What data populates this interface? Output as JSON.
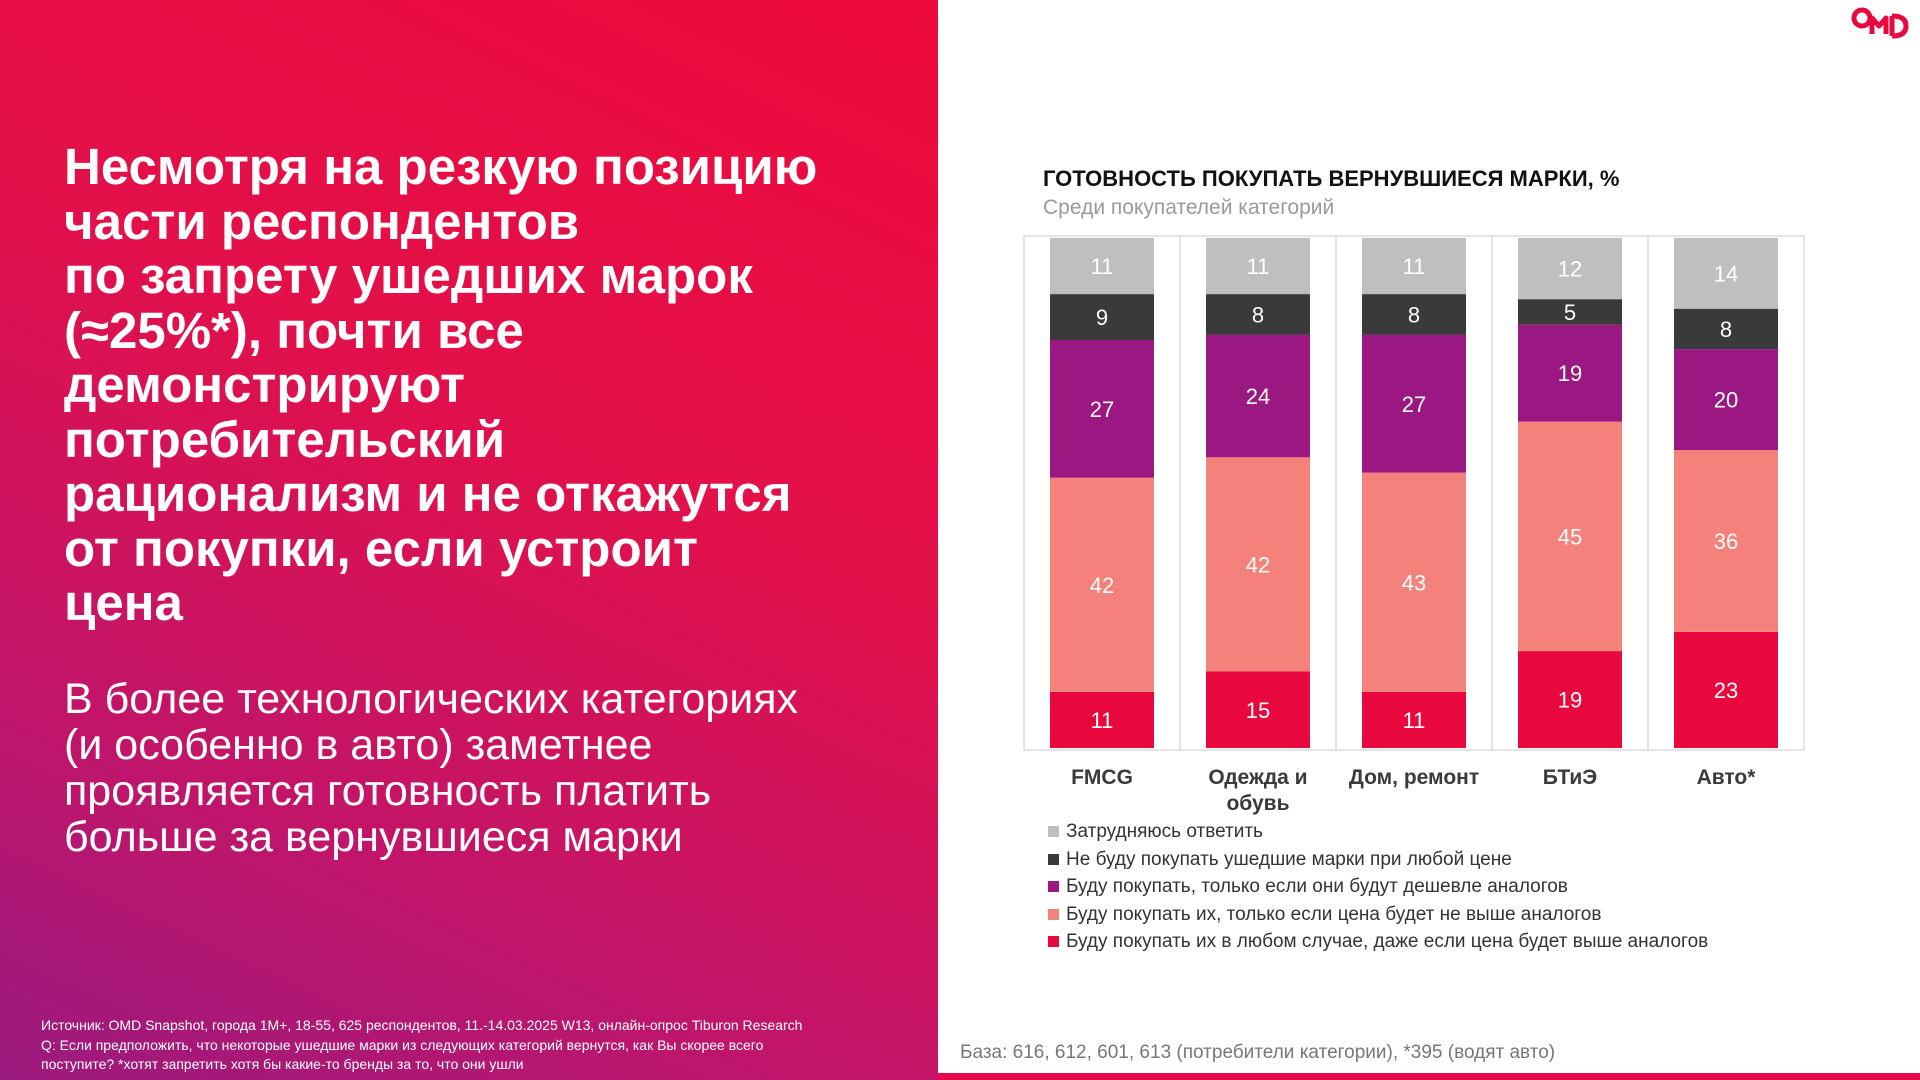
{
  "headline": [
    "Несмотря на резкую позицию",
    "части респондентов",
    "по запрету ушедших марок",
    "(≈25%*), почти все",
    "демонстрируют",
    "потребительский",
    "рационализм и не откажутся",
    "от покупки, если устроит",
    "цена"
  ],
  "subtext": [
    "В более технологических категориях",
    "(и особенно в авто) заметнее",
    "проявляется готовность платить",
    "больше за вернувшиеся марки"
  ],
  "source": {
    "line1": "Источник: OMD Snapshot, города 1М+, 18-55, 625 респондентов, 11.-14.03.2025 W13, онлайн-опрос Tiburon Research",
    "line2": "Q: Если предположить, что некоторые ушедшие марки из следующих категорий вернутся, как Вы скорее всего",
    "line3": "поступите? *хотят запретить хотя бы какие-то бренды за то, что они ушли"
  },
  "logo_text": "OMD",
  "base_note": "База: 616, 612, 601, 613 (потребители категории), *395 (водят авто)",
  "colors": {
    "hard": "#bfbfbf",
    "never": "#3a3a3a",
    "cheaper": "#9b1882",
    "same": "#f4827a",
    "any": "#e8083e",
    "left_bg": "#e40a49"
  },
  "chart_data": {
    "type": "bar",
    "stacked": true,
    "title": "ГОТОВНОСТЬ ПОКУПАТЬ ВЕРНУВШИЕСЯ МАРКИ, %",
    "subtitle": "Среди покупателей категорий",
    "categories": [
      "FMCG",
      "Одежда и обувь",
      "Дом, ремонт",
      "БТиЭ",
      "Авто*"
    ],
    "series": [
      {
        "name": "Буду покупать их в любом случае, даже если цена будет выше аналогов",
        "color": "#e8083e",
        "values": [
          11,
          15,
          11,
          19,
          23
        ]
      },
      {
        "name": "Буду покупать их, только если цена будет не выше аналогов",
        "color": "#f4827a",
        "values": [
          42,
          42,
          43,
          45,
          36
        ]
      },
      {
        "name": "Буду покупать, только если они будут дешевле аналогов",
        "color": "#9b1882",
        "values": [
          27,
          24,
          27,
          19,
          20
        ]
      },
      {
        "name": "Не буду покупать ушедшие марки при любой цене",
        "color": "#3a3a3a",
        "values": [
          9,
          8,
          8,
          5,
          8
        ]
      },
      {
        "name": "Затрудняюсь ответить",
        "color": "#bfbfbf",
        "values": [
          11,
          11,
          11,
          12,
          14
        ]
      }
    ],
    "legend_order": [
      4,
      3,
      2,
      1,
      0
    ],
    "legend_position": "bottom",
    "grid": false
  }
}
